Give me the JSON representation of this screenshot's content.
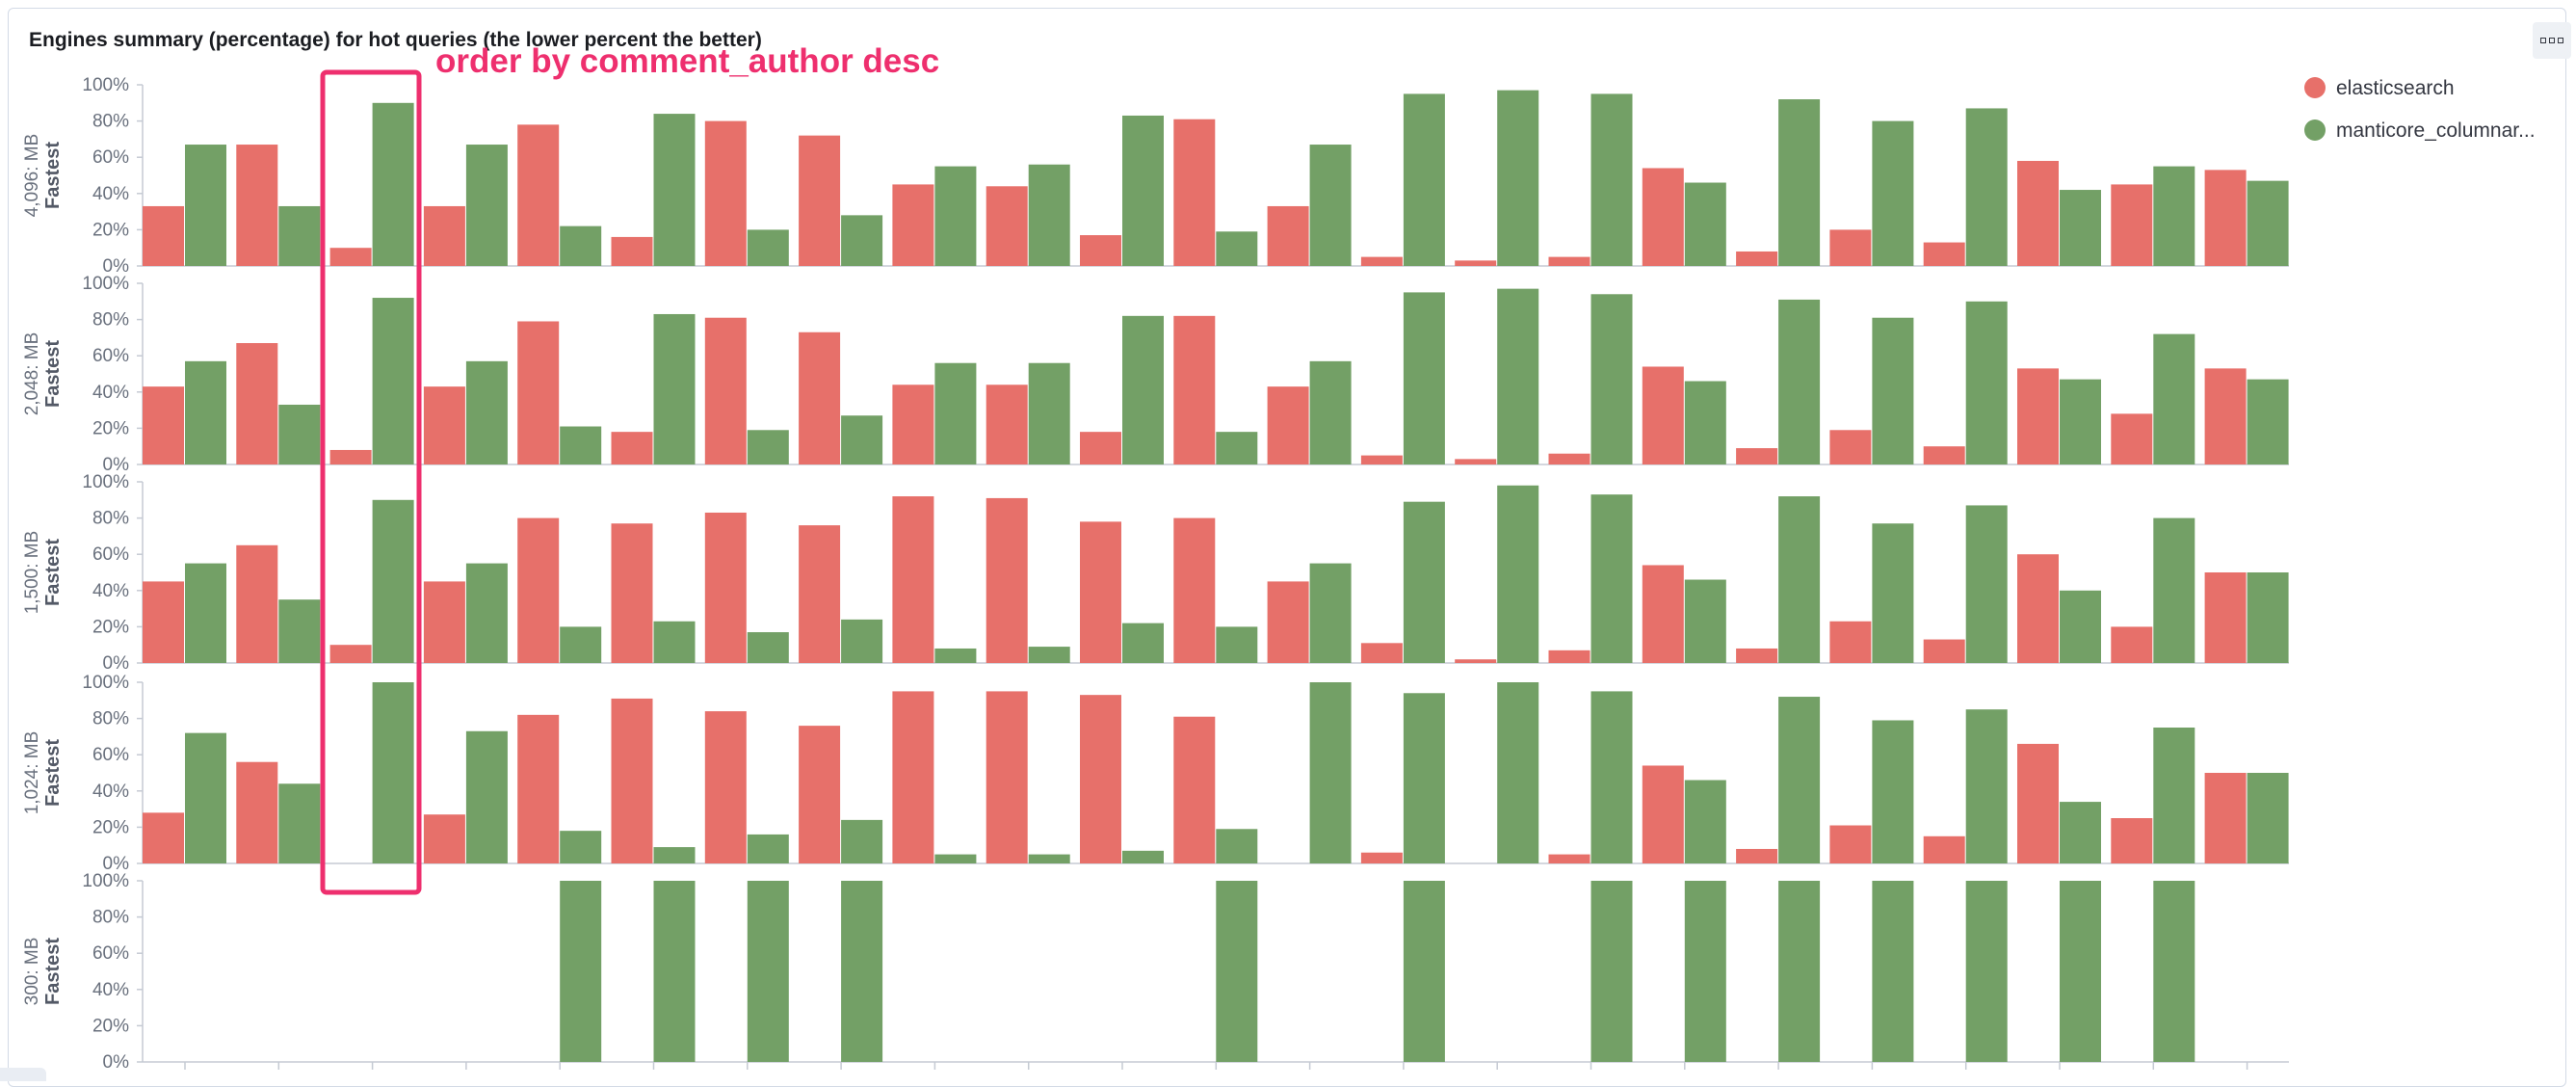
{
  "panel": {
    "title": "Engines summary (percentage) for hot queries (the lower percent the better)",
    "options_icon": "grid-dots-icon"
  },
  "annotation": {
    "text": "order by comment_author desc",
    "color": "#ee2f6e"
  },
  "chart_data": {
    "type": "bar",
    "title": "Engines summary (percentage) for hot queries (the lower percent the better)",
    "legend_position": "top-right",
    "colors": {
      "elasticsearch": "#e7706a",
      "manticore_columnar": "#73a066"
    },
    "legend": [
      "elasticsearch",
      "manticore_columnar..."
    ],
    "y_ticks": [
      "0%",
      "20%",
      "40%",
      "60%",
      "80%",
      "100%"
    ],
    "ylim": [
      0,
      100
    ],
    "category_count": 23,
    "rows": [
      {
        "label_top": "4,096: MB",
        "label_bottom": "Fastest",
        "series": [
          {
            "name": "elasticsearch",
            "values": [
              33,
              67,
              10,
              33,
              78,
              16,
              80,
              72,
              45,
              44,
              17,
              81,
              33,
              5,
              3,
              5,
              54,
              8,
              20,
              13,
              58,
              45,
              53
            ]
          },
          {
            "name": "manticore_columnar...",
            "values": [
              67,
              33,
              90,
              67,
              22,
              84,
              20,
              28,
              55,
              56,
              83,
              19,
              67,
              95,
              97,
              95,
              46,
              92,
              80,
              87,
              42,
              55,
              47
            ]
          }
        ]
      },
      {
        "label_top": "2,048: MB",
        "label_bottom": "Fastest",
        "series": [
          {
            "name": "elasticsearch",
            "values": [
              43,
              67,
              8,
              43,
              79,
              18,
              81,
              73,
              44,
              44,
              18,
              82,
              43,
              5,
              3,
              6,
              54,
              9,
              19,
              10,
              53,
              28,
              53
            ]
          },
          {
            "name": "manticore_columnar...",
            "values": [
              57,
              33,
              92,
              57,
              21,
              83,
              19,
              27,
              56,
              56,
              82,
              18,
              57,
              95,
              97,
              94,
              46,
              91,
              81,
              90,
              47,
              72,
              47
            ]
          }
        ]
      },
      {
        "label_top": "1,500: MB",
        "label_bottom": "Fastest",
        "series": [
          {
            "name": "elasticsearch",
            "values": [
              45,
              65,
              10,
              45,
              80,
              77,
              83,
              76,
              92,
              91,
              78,
              80,
              45,
              11,
              2,
              7,
              54,
              8,
              23,
              13,
              60,
              20,
              50
            ]
          },
          {
            "name": "manticore_columnar...",
            "values": [
              55,
              35,
              90,
              55,
              20,
              23,
              17,
              24,
              8,
              9,
              22,
              20,
              55,
              89,
              98,
              93,
              46,
              92,
              77,
              87,
              40,
              80,
              50
            ]
          }
        ]
      },
      {
        "label_top": "1,024: MB",
        "label_bottom": "Fastest",
        "series": [
          {
            "name": "elasticsearch",
            "values": [
              28,
              56,
              0,
              27,
              82,
              91,
              84,
              76,
              95,
              95,
              93,
              81,
              0,
              6,
              0,
              5,
              54,
              8,
              21,
              15,
              66,
              25,
              50
            ]
          },
          {
            "name": "manticore_columnar...",
            "values": [
              72,
              44,
              100,
              73,
              18,
              9,
              16,
              24,
              5,
              5,
              7,
              19,
              100,
              94,
              100,
              95,
              46,
              92,
              79,
              85,
              34,
              75,
              50
            ]
          }
        ]
      },
      {
        "label_top": "300: MB",
        "label_bottom": "Fastest",
        "series": [
          {
            "name": "elasticsearch",
            "values": [
              0,
              0,
              0,
              0,
              0,
              0,
              0,
              0,
              0,
              0,
              0,
              0,
              0,
              0,
              0,
              0,
              0,
              0,
              0,
              0,
              0,
              0,
              0
            ]
          },
          {
            "name": "manticore_columnar...",
            "values": [
              0,
              0,
              0,
              0,
              100,
              100,
              100,
              100,
              0,
              0,
              0,
              100,
              0,
              100,
              0,
              100,
              100,
              100,
              100,
              100,
              100,
              100,
              0
            ]
          }
        ]
      }
    ]
  }
}
